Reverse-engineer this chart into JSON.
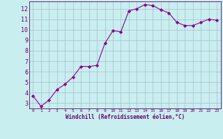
{
  "x": [
    0,
    1,
    2,
    3,
    4,
    5,
    6,
    7,
    8,
    9,
    10,
    11,
    12,
    13,
    14,
    15,
    16,
    17,
    18,
    19,
    20,
    21,
    22,
    23
  ],
  "y": [
    3.7,
    2.7,
    3.3,
    4.3,
    4.8,
    5.5,
    6.5,
    6.5,
    6.6,
    8.7,
    9.9,
    9.8,
    11.8,
    12.0,
    12.4,
    12.3,
    11.9,
    11.6,
    10.7,
    10.4,
    10.4,
    10.7,
    11.0,
    10.9
  ],
  "line_color": "#880088",
  "marker": "D",
  "markersize": 2.2,
  "linewidth": 0.8,
  "xlabel": "Windchill (Refroidissement éolien,°C)",
  "xlim": [
    -0.5,
    23.5
  ],
  "ylim": [
    2.5,
    12.7
  ],
  "yticks": [
    3,
    4,
    5,
    6,
    7,
    8,
    9,
    10,
    11,
    12
  ],
  "xticks": [
    0,
    1,
    2,
    3,
    4,
    5,
    6,
    7,
    8,
    9,
    10,
    11,
    12,
    13,
    14,
    15,
    16,
    17,
    18,
    19,
    20,
    21,
    22,
    23
  ],
  "bg_color": "#c8eef0",
  "grid_color": "#aabbcc",
  "label_color": "#660066",
  "tick_color": "#660066",
  "spine_color": "#660066"
}
